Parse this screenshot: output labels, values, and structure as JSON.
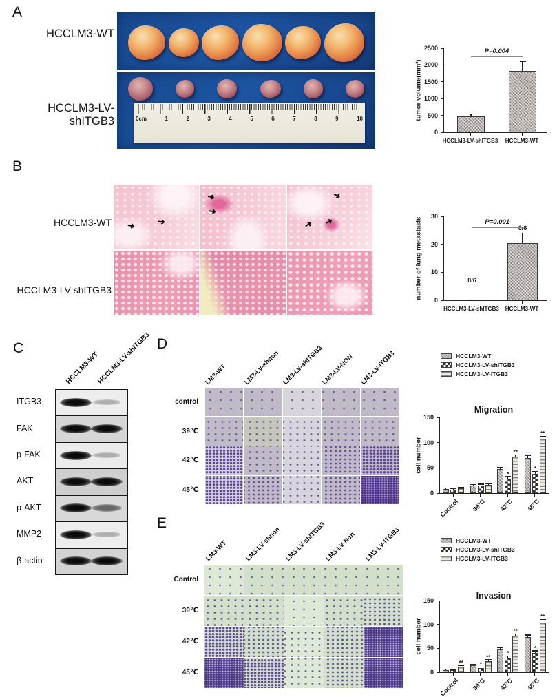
{
  "icons": {
    "arrow": "➜"
  },
  "panels": {
    "a": {
      "label": "A",
      "row_labels": [
        "HCCLM3-WT",
        "HCCLM3-LV-shITGB3"
      ],
      "ruler_ticks": [
        "0cm",
        "1",
        "2",
        "3",
        "4",
        "5",
        "6",
        "7",
        "8",
        "9",
        "10"
      ]
    },
    "b": {
      "label": "B",
      "row_labels": [
        "HCCLM3-WT",
        "HCCLM3-LV-shITGB3"
      ]
    },
    "c": {
      "label": "C",
      "lane_labels": [
        "HCCLM3-WT",
        "HCCLM3-LV-shITGB3"
      ],
      "proteins": [
        {
          "name": "ITGB3",
          "lanes": [
            "strong",
            "faint"
          ]
        },
        {
          "name": "FAK",
          "lanes": [
            "strong",
            "strong"
          ]
        },
        {
          "name": "p-FAK",
          "lanes": [
            "strong",
            "faint"
          ]
        },
        {
          "name": "AKT",
          "lanes": [
            "strong",
            "strong"
          ]
        },
        {
          "name": "p-AKT",
          "lanes": [
            "strong",
            "medium"
          ]
        },
        {
          "name": "MMP2",
          "lanes": [
            "strong",
            "faint"
          ]
        },
        {
          "name": "β-actin",
          "lanes": [
            "strong",
            "strong"
          ]
        }
      ]
    },
    "d": {
      "label": "D",
      "col_labels": [
        "LM3-WT",
        "LM3-LV-shnon",
        "LM3-LV-shITGB3",
        "LM3-LV-NON",
        "LM3-LV-ITGB3"
      ],
      "row_labels": [
        "control",
        "39℃",
        "42℃",
        "45℃"
      ]
    },
    "e": {
      "label": "E",
      "col_labels": [
        "LM3-WT",
        "LM3-LV-shnon",
        "LM3-LV-shITGB3",
        "LM3-LV-Non",
        "LM3-LV-ITGB3"
      ],
      "row_labels": [
        "Control",
        "39℃",
        "42℃",
        "45℃"
      ]
    }
  },
  "chart_data": [
    {
      "id": "tumor_volume",
      "type": "bar",
      "categories": [
        "HCCLM3-LV-shITGB3",
        "HCCLM3-WT"
      ],
      "values": [
        470,
        1820
      ],
      "errors": [
        60,
        280
      ],
      "ylabel": "tumor volume(mm³)",
      "ylim": [
        0,
        2500
      ],
      "yticks": [
        0,
        500,
        1000,
        1500,
        2000,
        2500
      ],
      "annotation": "P=0.004"
    },
    {
      "id": "lung_metastasis",
      "type": "bar",
      "categories": [
        "HCCLM3-LV-shITGB3",
        "HCCLM3-WT"
      ],
      "values": [
        0,
        20.5
      ],
      "errors": [
        0,
        3.3
      ],
      "bar_labels": [
        "0/6",
        "6/6"
      ],
      "ylabel": "number of lung metastasis",
      "ylim": [
        0,
        30
      ],
      "yticks": [
        0,
        10,
        20,
        30
      ],
      "annotation": "P=0.001"
    },
    {
      "id": "migration",
      "type": "bar",
      "title": "Migration",
      "categories": [
        "Control",
        "39°C",
        "42°C",
        "45°C"
      ],
      "ylabel": "cell number",
      "ylim": [
        0,
        150
      ],
      "yticks": [
        0,
        50,
        100,
        150
      ],
      "legend_position": "top-right",
      "series": [
        {
          "name": "HCCLM3-WT",
          "values": [
            8,
            15,
            48,
            70
          ],
          "errors": [
            1.5,
            1.5,
            2,
            4
          ],
          "sig": [
            "",
            "",
            "",
            ""
          ]
        },
        {
          "name": "HCCLM3-LV-shITGB3",
          "values": [
            7,
            15,
            29,
            38
          ],
          "errors": [
            1.5,
            2,
            3,
            4
          ],
          "sig": [
            "",
            "",
            "*",
            "*"
          ]
        },
        {
          "name": "HCCLM3-LV-ITGB3",
          "values": [
            9,
            16,
            72,
            108
          ],
          "errors": [
            1.5,
            1.5,
            3,
            4
          ],
          "sig": [
            "",
            "",
            "**",
            "**"
          ]
        }
      ]
    },
    {
      "id": "invasion",
      "type": "bar",
      "title": "Invasion",
      "categories": [
        "Control",
        "39°C",
        "42°C",
        "45°C"
      ],
      "ylabel": "cell number",
      "ylim": [
        0,
        150
      ],
      "yticks": [
        0,
        50,
        100,
        150
      ],
      "legend_position": "top-right",
      "series": [
        {
          "name": "HCCLM3-WT",
          "values": [
            5,
            14,
            48,
            74
          ],
          "errors": [
            1,
            1.5,
            2,
            3
          ],
          "sig": [
            "",
            "",
            "",
            ""
          ]
        },
        {
          "name": "HCCLM3-LV-shITGB3",
          "values": [
            4,
            8,
            30,
            40
          ],
          "errors": [
            1,
            1.5,
            3,
            4
          ],
          "sig": [
            "",
            "*",
            "*",
            "*"
          ]
        },
        {
          "name": "HCCLM3-LV-ITGB3",
          "values": [
            11,
            23,
            76,
            104
          ],
          "errors": [
            2,
            2,
            3,
            5
          ],
          "sig": [
            "**",
            "**",
            "**",
            "**"
          ]
        }
      ]
    }
  ]
}
